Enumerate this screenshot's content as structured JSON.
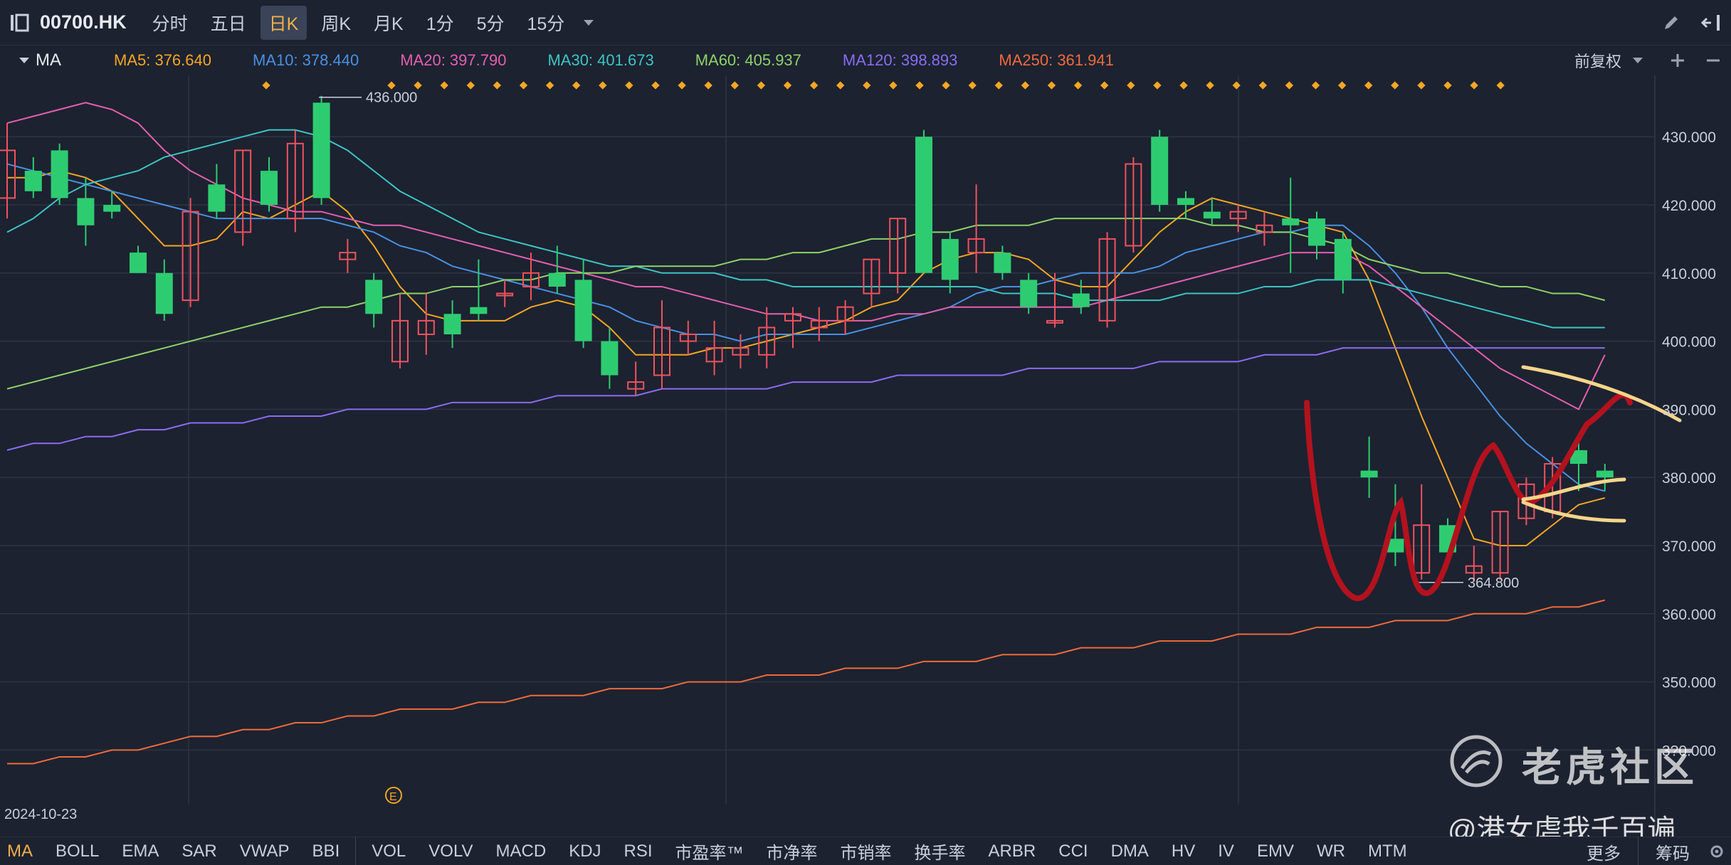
{
  "header": {
    "symbol": "00700.HK",
    "periods": [
      "分时",
      "五日",
      "日K",
      "周K",
      "月K",
      "1分",
      "5分",
      "15分"
    ],
    "active_period": "日K"
  },
  "ma_bar": {
    "toggle_label": "MA",
    "items": [
      {
        "label": "MA5: 376.640",
        "color": "#f5a623"
      },
      {
        "label": "MA10: 378.440",
        "color": "#4a90e2"
      },
      {
        "label": "MA20: 397.790",
        "color": "#e55fb0"
      },
      {
        "label": "MA30: 401.673",
        "color": "#3dc4c4"
      },
      {
        "label": "MA60: 405.937",
        "color": "#8fd16a"
      },
      {
        "label": "MA120: 398.893",
        "color": "#8a6cf0"
      },
      {
        "label": "MA250: 361.941",
        "color": "#f06a3c"
      }
    ],
    "adjust_label": "前复权"
  },
  "chart_data": {
    "type": "candlestick",
    "symbol": "00700.HK",
    "y_ticks": [
      "430.000",
      "420.000",
      "410.000",
      "400.000",
      "390.000",
      "380.000",
      "370.000",
      "360.000",
      "350.000",
      "3?0.000"
    ],
    "ylim": [
      332,
      439
    ],
    "high_label": "436.000",
    "low_label": "364.800",
    "start_date_label": "2024-10-23",
    "up_color": "#f0525f",
    "down_color": "#2ecc71",
    "candles": [
      {
        "o": 421,
        "h": 432,
        "l": 418,
        "c": 428
      },
      {
        "o": 425,
        "h": 427,
        "l": 421,
        "c": 422
      },
      {
        "o": 428,
        "h": 429,
        "l": 420,
        "c": 421
      },
      {
        "o": 421,
        "h": 424,
        "l": 414,
        "c": 417
      },
      {
        "o": 420,
        "h": 422,
        "l": 418,
        "c": 419
      },
      {
        "o": 413,
        "h": 414,
        "l": 410,
        "c": 410
      },
      {
        "o": 410,
        "h": 412,
        "l": 403,
        "c": 404
      },
      {
        "o": 406,
        "h": 421,
        "l": 405,
        "c": 419
      },
      {
        "o": 423,
        "h": 426,
        "l": 418,
        "c": 419
      },
      {
        "o": 416,
        "h": 428,
        "l": 414,
        "c": 428
      },
      {
        "o": 425,
        "h": 427,
        "l": 419,
        "c": 420
      },
      {
        "o": 418,
        "h": 431,
        "l": 416,
        "c": 429
      },
      {
        "o": 435,
        "h": 436,
        "l": 420,
        "c": 421
      },
      {
        "o": 412,
        "h": 415,
        "l": 410,
        "c": 413
      },
      {
        "o": 409,
        "h": 410,
        "l": 402,
        "c": 404
      },
      {
        "o": 397,
        "h": 407,
        "l": 396,
        "c": 403
      },
      {
        "o": 401,
        "h": 407,
        "l": 398,
        "c": 403
      },
      {
        "o": 404,
        "h": 406,
        "l": 399,
        "c": 401
      },
      {
        "o": 405,
        "h": 412,
        "l": 403,
        "c": 404
      },
      {
        "o": 407,
        "h": 409,
        "l": 405,
        "c": 407
      },
      {
        "o": 408,
        "h": 413,
        "l": 406,
        "c": 410
      },
      {
        "o": 410,
        "h": 414,
        "l": 407,
        "c": 408
      },
      {
        "o": 409,
        "h": 412,
        "l": 399,
        "c": 400
      },
      {
        "o": 400,
        "h": 402,
        "l": 393,
        "c": 395
      },
      {
        "o": 393,
        "h": 397,
        "l": 392,
        "c": 394
      },
      {
        "o": 395,
        "h": 406,
        "l": 393,
        "c": 402
      },
      {
        "o": 400,
        "h": 403,
        "l": 398,
        "c": 401
      },
      {
        "o": 397,
        "h": 403,
        "l": 395,
        "c": 399
      },
      {
        "o": 398,
        "h": 401,
        "l": 396,
        "c": 399
      },
      {
        "o": 398,
        "h": 405,
        "l": 396,
        "c": 402
      },
      {
        "o": 403,
        "h": 405,
        "l": 399,
        "c": 404
      },
      {
        "o": 402,
        "h": 405,
        "l": 400,
        "c": 403
      },
      {
        "o": 403,
        "h": 406,
        "l": 401,
        "c": 405
      },
      {
        "o": 407,
        "h": 412,
        "l": 405,
        "c": 412
      },
      {
        "o": 410,
        "h": 418,
        "l": 407,
        "c": 418
      },
      {
        "o": 430,
        "h": 431,
        "l": 410,
        "c": 410
      },
      {
        "o": 415,
        "h": 416,
        "l": 407,
        "c": 409
      },
      {
        "o": 413,
        "h": 423,
        "l": 410,
        "c": 415
      },
      {
        "o": 413,
        "h": 414,
        "l": 409,
        "c": 410
      },
      {
        "o": 409,
        "h": 410,
        "l": 404,
        "c": 405
      },
      {
        "o": 403,
        "h": 410,
        "l": 402,
        "c": 403
      },
      {
        "o": 407,
        "h": 409,
        "l": 404,
        "c": 405
      },
      {
        "o": 403,
        "h": 416,
        "l": 402,
        "c": 415
      },
      {
        "o": 414,
        "h": 427,
        "l": 413,
        "c": 426
      },
      {
        "o": 430,
        "h": 431,
        "l": 419,
        "c": 420
      },
      {
        "o": 421,
        "h": 422,
        "l": 418,
        "c": 420
      },
      {
        "o": 419,
        "h": 421,
        "l": 417,
        "c": 418
      },
      {
        "o": 418,
        "h": 420,
        "l": 416,
        "c": 419
      },
      {
        "o": 416,
        "h": 419,
        "l": 414,
        "c": 417
      },
      {
        "o": 418,
        "h": 424,
        "l": 410,
        "c": 417
      },
      {
        "o": 418,
        "h": 419,
        "l": 412,
        "c": 414
      },
      {
        "o": 415,
        "h": 416,
        "l": 407,
        "c": 409
      },
      {
        "o": 381,
        "h": 386,
        "l": 377,
        "c": 380
      },
      {
        "o": 371,
        "h": 379,
        "l": 367,
        "c": 369
      },
      {
        "o": 366,
        "h": 379,
        "l": 365,
        "c": 373
      },
      {
        "o": 373,
        "h": 374,
        "l": 369,
        "c": 369
      },
      {
        "o": 366,
        "h": 370,
        "l": 364.8,
        "c": 367
      },
      {
        "o": 366,
        "h": 375,
        "l": 365,
        "c": 375
      },
      {
        "o": 374,
        "h": 380,
        "l": 373,
        "c": 379
      },
      {
        "o": 375,
        "h": 383,
        "l": 374,
        "c": 382
      },
      {
        "o": 384,
        "h": 386,
        "l": 378,
        "c": 382
      },
      {
        "o": 381,
        "h": 382,
        "l": 378,
        "c": 380
      }
    ],
    "ma_lines": [
      {
        "name": "MA5",
        "values": [
          424,
          424,
          425,
          424,
          422,
          418,
          414,
          414,
          415,
          419,
          418,
          420,
          422,
          419,
          414,
          408,
          404,
          403,
          403,
          403,
          405,
          406,
          405,
          402,
          398,
          398,
          398,
          399,
          399,
          400,
          401,
          402,
          403,
          405,
          406,
          410,
          412,
          413,
          413,
          412,
          409,
          408,
          408,
          412,
          416,
          419,
          421,
          420,
          419,
          418,
          417,
          416,
          409,
          399,
          389,
          380,
          371,
          370,
          370,
          373,
          376,
          377
        ]
      },
      {
        "name": "MA10",
        "values": [
          426,
          425,
          424,
          423,
          422,
          421,
          420,
          419,
          418,
          418,
          418,
          418,
          418,
          417,
          416,
          414,
          413,
          411,
          410,
          409,
          408,
          407,
          406,
          405,
          403,
          402,
          401,
          401,
          400,
          401,
          401,
          401,
          401,
          402,
          403,
          404,
          405,
          407,
          408,
          408,
          409,
          410,
          410,
          410,
          411,
          413,
          414,
          415,
          416,
          416,
          417,
          417,
          414,
          410,
          405,
          399,
          394,
          389,
          385,
          382,
          379,
          378
        ]
      },
      {
        "name": "MA20",
        "values": [
          432,
          433,
          434,
          435,
          434,
          432,
          428,
          425,
          423,
          421,
          420,
          419,
          419,
          418,
          417,
          417,
          416,
          415,
          414,
          413,
          412,
          411,
          410,
          409,
          408,
          408,
          407,
          406,
          405,
          404,
          404,
          403,
          403,
          403,
          404,
          404,
          405,
          405,
          405,
          405,
          405,
          405,
          406,
          407,
          408,
          409,
          410,
          411,
          412,
          413,
          413,
          413,
          411,
          408,
          405,
          402,
          399,
          396,
          394,
          392,
          390,
          398
        ]
      },
      {
        "name": "MA30",
        "values": [
          416,
          418,
          421,
          423,
          424,
          425,
          427,
          428,
          429,
          430,
          431,
          431,
          430,
          428,
          425,
          422,
          420,
          418,
          416,
          415,
          414,
          413,
          412,
          411,
          411,
          410,
          410,
          410,
          409,
          409,
          408,
          408,
          408,
          408,
          408,
          408,
          408,
          408,
          407,
          407,
          407,
          406,
          406,
          406,
          406,
          407,
          407,
          407,
          408,
          408,
          409,
          409,
          409,
          408,
          407,
          406,
          405,
          404,
          403,
          402,
          402,
          402
        ]
      },
      {
        "name": "MA60",
        "values": [
          393,
          394,
          395,
          396,
          397,
          398,
          399,
          400,
          401,
          402,
          403,
          404,
          405,
          405,
          406,
          407,
          407,
          408,
          408,
          409,
          409,
          410,
          410,
          410,
          411,
          411,
          411,
          411,
          412,
          412,
          413,
          413,
          414,
          415,
          415,
          416,
          416,
          417,
          417,
          417,
          418,
          418,
          418,
          418,
          418,
          418,
          417,
          417,
          416,
          416,
          415,
          414,
          412,
          411,
          410,
          410,
          409,
          408,
          408,
          407,
          407,
          406
        ]
      },
      {
        "name": "MA120",
        "values": [
          384,
          385,
          385,
          386,
          386,
          387,
          387,
          388,
          388,
          388,
          389,
          389,
          389,
          390,
          390,
          390,
          390,
          391,
          391,
          391,
          391,
          392,
          392,
          392,
          392,
          393,
          393,
          393,
          393,
          393,
          394,
          394,
          394,
          394,
          395,
          395,
          395,
          395,
          395,
          396,
          396,
          396,
          396,
          396,
          397,
          397,
          397,
          397,
          398,
          398,
          398,
          399,
          399,
          399,
          399,
          399,
          399,
          399,
          399,
          399,
          399,
          399
        ]
      },
      {
        "name": "MA250",
        "values": [
          338,
          338,
          339,
          339,
          340,
          340,
          341,
          342,
          342,
          343,
          343,
          344,
          344,
          345,
          345,
          346,
          346,
          346,
          347,
          347,
          348,
          348,
          348,
          349,
          349,
          349,
          350,
          350,
          350,
          351,
          351,
          351,
          352,
          352,
          352,
          353,
          353,
          353,
          354,
          354,
          354,
          355,
          355,
          355,
          356,
          356,
          356,
          357,
          357,
          357,
          358,
          358,
          358,
          359,
          359,
          359,
          360,
          360,
          360,
          361,
          361,
          362
        ]
      }
    ]
  },
  "bottom_tabs": {
    "left": [
      "MA",
      "BOLL",
      "EMA",
      "SAR",
      "VWAP",
      "BBI"
    ],
    "right": [
      "VOL",
      "VOLV",
      "MACD",
      "KDJ",
      "RSI",
      "市盈率™",
      "市净率",
      "市销率",
      "换手率",
      "ARBR",
      "CCI",
      "DMA",
      "HV",
      "IV",
      "EMV",
      "WR",
      "MTM"
    ],
    "more_label": "更多",
    "chips_label": "筹码",
    "active": "MA"
  },
  "watermark": {
    "brand": "老虎社区",
    "user": "@港女虐我千百遍"
  },
  "event_marker": "E",
  "icons": {
    "panel_toggle": "panel-collapse-icon",
    "more_periods": "chevron-down-icon",
    "draw": "pencil-icon",
    "exit": "exit-icon",
    "zoom_in": "plus-icon",
    "zoom_out": "minus-icon",
    "settings": "gear-icon",
    "logo": "tiger-logo-icon"
  }
}
